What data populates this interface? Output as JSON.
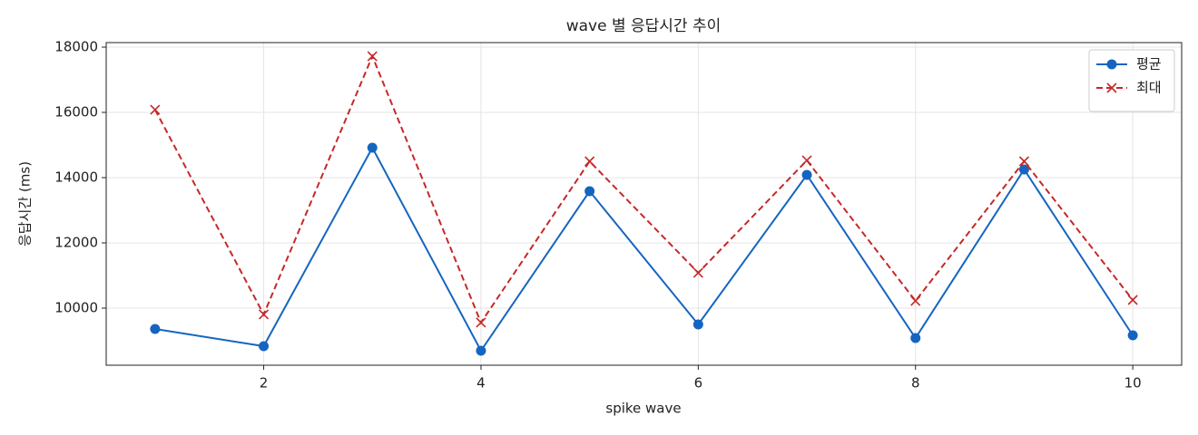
{
  "chart_data": {
    "type": "line",
    "title": "wave 별 응답시간 추이",
    "xlabel": "spike wave",
    "ylabel": "응답시간 (ms)",
    "x": [
      1,
      2,
      3,
      4,
      5,
      6,
      7,
      8,
      9,
      10
    ],
    "series": [
      {
        "name": "평균",
        "color": "#1565c0",
        "marker": "o",
        "linestyle": "solid",
        "values": [
          9361,
          8833,
          14917,
          8694,
          13583,
          9500,
          14083,
          9083,
          14250,
          9167
        ]
      },
      {
        "name": "최대",
        "color": "#c62828",
        "marker": "x",
        "linestyle": "dashed",
        "values": [
          16083,
          9806,
          17722,
          9556,
          14500,
          11083,
          14528,
          10222,
          14500,
          10250
        ]
      }
    ],
    "xlim": [
      0.55,
      10.45
    ],
    "xticks": [
      2,
      4,
      6,
      8,
      10
    ],
    "ylim": [
      8250,
      18139
    ],
    "yticks": [
      10000,
      12000,
      14000,
      16000,
      18000
    ],
    "grid": true,
    "legend": "upper right"
  }
}
